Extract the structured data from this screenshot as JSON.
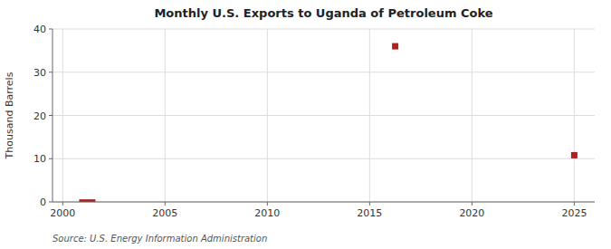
{
  "chart_data": {
    "type": "scatter",
    "title": "Monthly U.S. Exports to Uganda of Petroleum Coke",
    "ylabel": "Thousand Barrels",
    "source": "Source: U.S. Energy Information Administration",
    "xlim": [
      1999.5,
      2026
    ],
    "ylim": [
      0,
      40
    ],
    "xticks": [
      2000,
      2005,
      2010,
      2015,
      2020,
      2025
    ],
    "yticks": [
      0,
      10,
      20,
      30,
      40
    ],
    "grid": true,
    "series": [
      {
        "type": "bar",
        "color": "#aa2222",
        "x": [
          2001.2
        ],
        "values": [
          0.6
        ]
      },
      {
        "type": "scatter",
        "color": "#aa2222",
        "marker": "square",
        "x": [
          2016.25,
          2025.0
        ],
        "values": [
          36.0,
          10.8
        ]
      }
    ]
  }
}
